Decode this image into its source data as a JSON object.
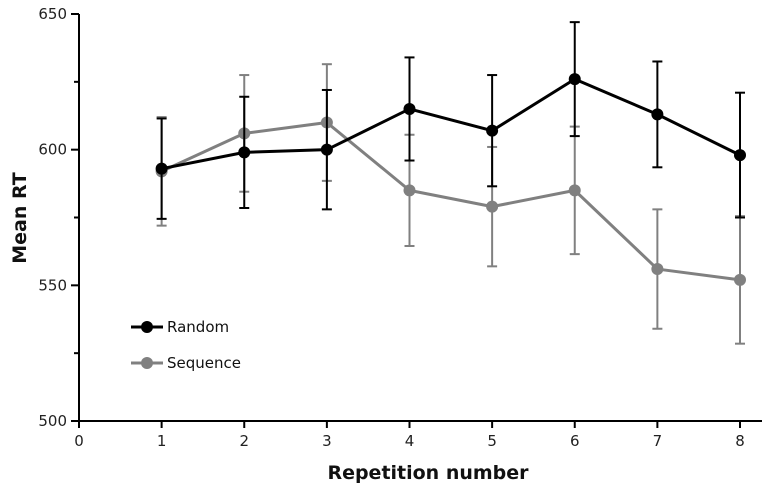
{
  "chart_data": {
    "type": "line",
    "xlabel": "Repetition number",
    "ylabel": "Mean RT",
    "xlim": [
      0,
      8
    ],
    "ylim": [
      500,
      650
    ],
    "x_ticks": [
      0,
      1,
      2,
      3,
      4,
      5,
      6,
      7,
      8
    ],
    "y_ticks": [
      500,
      550,
      600,
      650
    ],
    "grid": false,
    "legend_position": "bottom-left",
    "series": [
      {
        "name": "Random",
        "color": "#000000",
        "x": [
          1,
          2,
          3,
          4,
          5,
          6,
          7,
          8
        ],
        "y": [
          593,
          599,
          600,
          615,
          607,
          626,
          613,
          598
        ],
        "error": [
          18.5,
          20.5,
          22,
          19,
          20.5,
          21,
          19.5,
          23
        ]
      },
      {
        "name": "Sequence",
        "color": "#808080",
        "x": [
          1,
          2,
          3,
          4,
          5,
          6,
          7,
          8
        ],
        "y": [
          592,
          606,
          610,
          585,
          579,
          585,
          556,
          552
        ],
        "error": [
          20,
          21.5,
          21.5,
          20.5,
          22,
          23.5,
          22,
          23.5
        ]
      }
    ]
  }
}
